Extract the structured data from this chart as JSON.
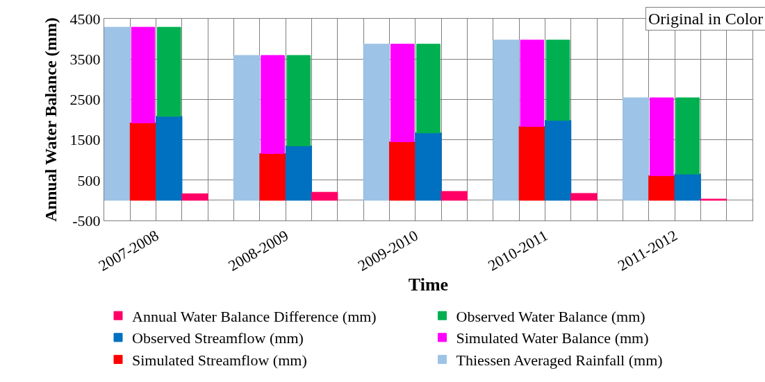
{
  "chart_data": {
    "type": "bar",
    "xlabel": "Time",
    "ylabel": "Annual Water Balance (mm)",
    "categories": [
      "2007-2008",
      "2008-2009",
      "2009-2010",
      "2010-2011",
      "2011-2012"
    ],
    "series": [
      {
        "name": "Thiessen Averaged Rainfall (mm)",
        "color": "#9dc3e6",
        "values": [
          4290,
          3590,
          3870,
          3970,
          2540
        ]
      },
      {
        "name": "Simulated Streamflow (mm)",
        "color": "#ff0000",
        "values": [
          1920,
          1160,
          1450,
          1830,
          610
        ]
      },
      {
        "name": "Simulated Water Balance (mm)",
        "color": "#ff00ff",
        "values": [
          2370,
          2430,
          2420,
          2140,
          1930
        ],
        "base": [
          1920,
          1160,
          1450,
          1830,
          610
        ]
      },
      {
        "name": "Observed Streamflow (mm)",
        "color": "#0070c0",
        "values": [
          2080,
          1350,
          1670,
          1980,
          650
        ]
      },
      {
        "name": "Observed Water Balance (mm)",
        "color": "#00b050",
        "values": [
          2210,
          2240,
          2200,
          1990,
          1890
        ],
        "base": [
          2080,
          1350,
          1670,
          1980,
          650
        ]
      },
      {
        "name": "Annual Water Balance Difference (mm)",
        "color": "#ff0066",
        "values": [
          160,
          200,
          220,
          170,
          30
        ]
      }
    ],
    "ylim": [
      -500,
      4500
    ],
    "yticks": [
      -500,
      500,
      1500,
      2500,
      3500,
      4500
    ],
    "grid": true,
    "legend": "bottom",
    "annotations": [
      "Original in Color"
    ]
  }
}
